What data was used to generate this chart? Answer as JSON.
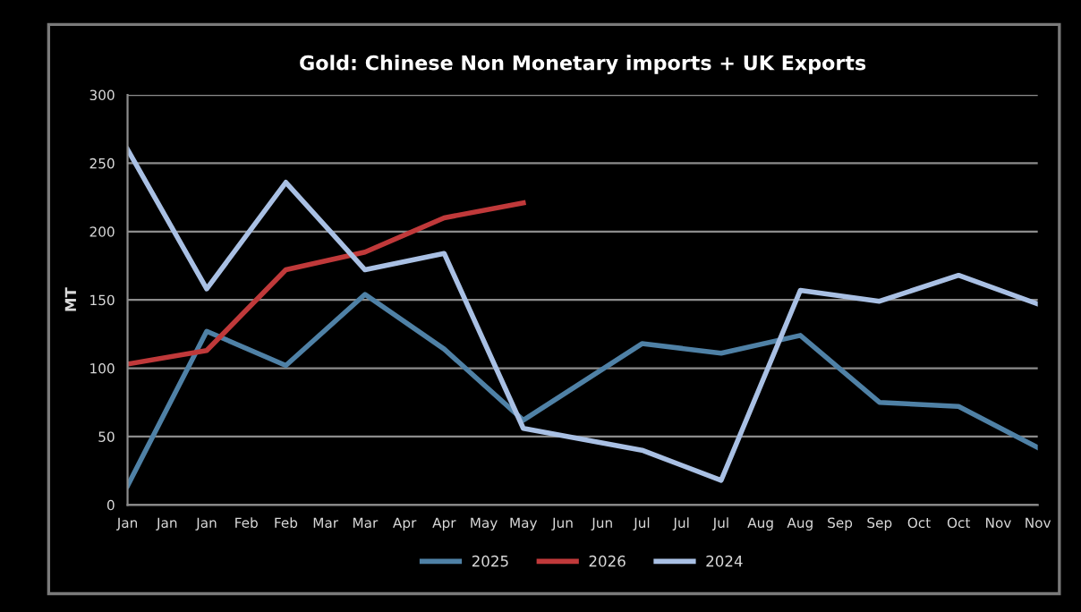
{
  "chart_data": {
    "type": "line",
    "title": "Gold: Chinese Non Monetary imports + UK Exports",
    "ylabel": "MT",
    "categories": [
      "Jan",
      "Jan",
      "Jan",
      "Feb",
      "Feb",
      "Mar",
      "Mar",
      "Apr",
      "Apr",
      "May",
      "May",
      "Jun",
      "Jun",
      "Jul",
      "Jul",
      "Jul",
      "Aug",
      "Aug",
      "Sep",
      "Sep",
      "Oct",
      "Oct",
      "Nov",
      "Nov"
    ],
    "ylim": [
      0,
      300
    ],
    "yticks": [
      0,
      50,
      100,
      150,
      200,
      250,
      300
    ],
    "grid": "y",
    "legend": "bottom",
    "series": [
      {
        "name": "2025",
        "color": "#4f81a6",
        "values": [
          14,
          null,
          127,
          null,
          102,
          null,
          154,
          null,
          114,
          null,
          62,
          null,
          null,
          118,
          null,
          111,
          null,
          124,
          null,
          75,
          null,
          72,
          null,
          42
        ]
      },
      {
        "name": "2026",
        "color": "#c0393a",
        "values": [
          103,
          null,
          113,
          null,
          172,
          null,
          185,
          null,
          210,
          null,
          221,
          null,
          null,
          null,
          null,
          null,
          null,
          null,
          null,
          null,
          null,
          null,
          null,
          null
        ]
      },
      {
        "name": "2024",
        "color": "#a9c0e4",
        "values": [
          260,
          null,
          158,
          null,
          236,
          null,
          172,
          null,
          184,
          null,
          56,
          null,
          null,
          40,
          null,
          18,
          null,
          157,
          null,
          149,
          null,
          168,
          null,
          147
        ]
      }
    ]
  }
}
